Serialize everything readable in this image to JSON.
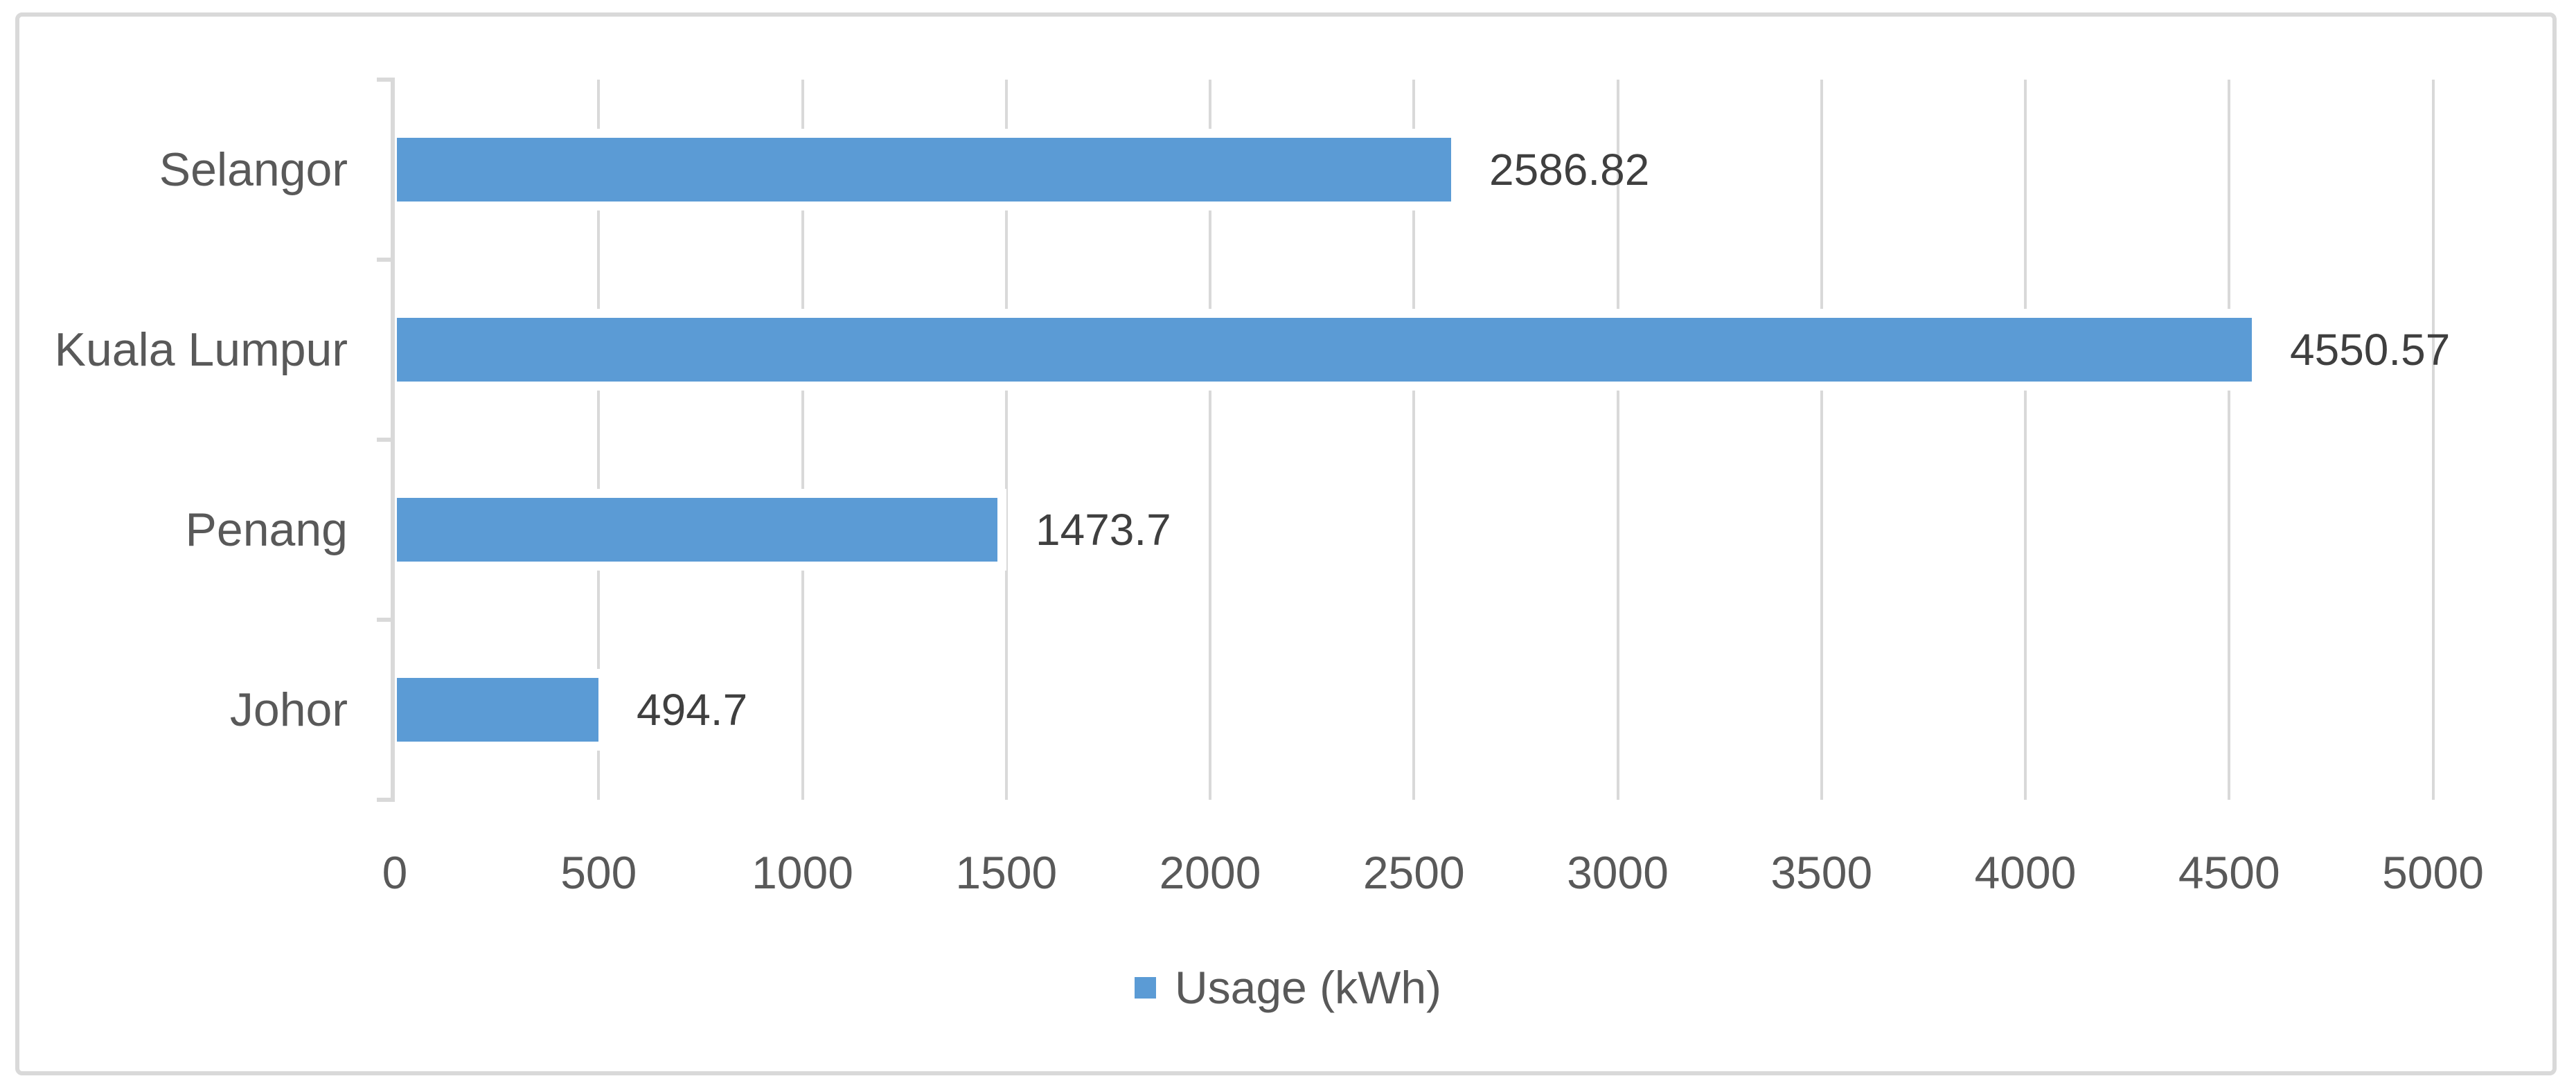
{
  "chart_data": {
    "type": "bar",
    "orientation": "horizontal",
    "title": "",
    "categories": [
      "Selangor",
      "Kuala Lumpur",
      "Penang",
      "Johor"
    ],
    "series": [
      {
        "name": "Usage (kWh)",
        "values": [
          2586.82,
          4550.57,
          1473.7,
          494.7
        ],
        "color": "#5B9BD5"
      }
    ],
    "data_labels": [
      "2586.82",
      "4550.57",
      "1473.7",
      "494.7"
    ],
    "xlabel": "",
    "ylabel": "",
    "xlim": [
      0,
      5000
    ],
    "x_ticks": [
      0,
      500,
      1000,
      1500,
      2000,
      2500,
      3000,
      3500,
      4000,
      4500,
      5000
    ],
    "grid": true,
    "legend_position": "bottom",
    "colors": {
      "bar": "#5B9BD5",
      "axis_text": "#595959",
      "data_label_text": "#3F3F3F",
      "gridline": "#D9D9D9",
      "frame_border": "#D9D9D9"
    }
  },
  "legend": {
    "label": "Usage (kWh)"
  }
}
